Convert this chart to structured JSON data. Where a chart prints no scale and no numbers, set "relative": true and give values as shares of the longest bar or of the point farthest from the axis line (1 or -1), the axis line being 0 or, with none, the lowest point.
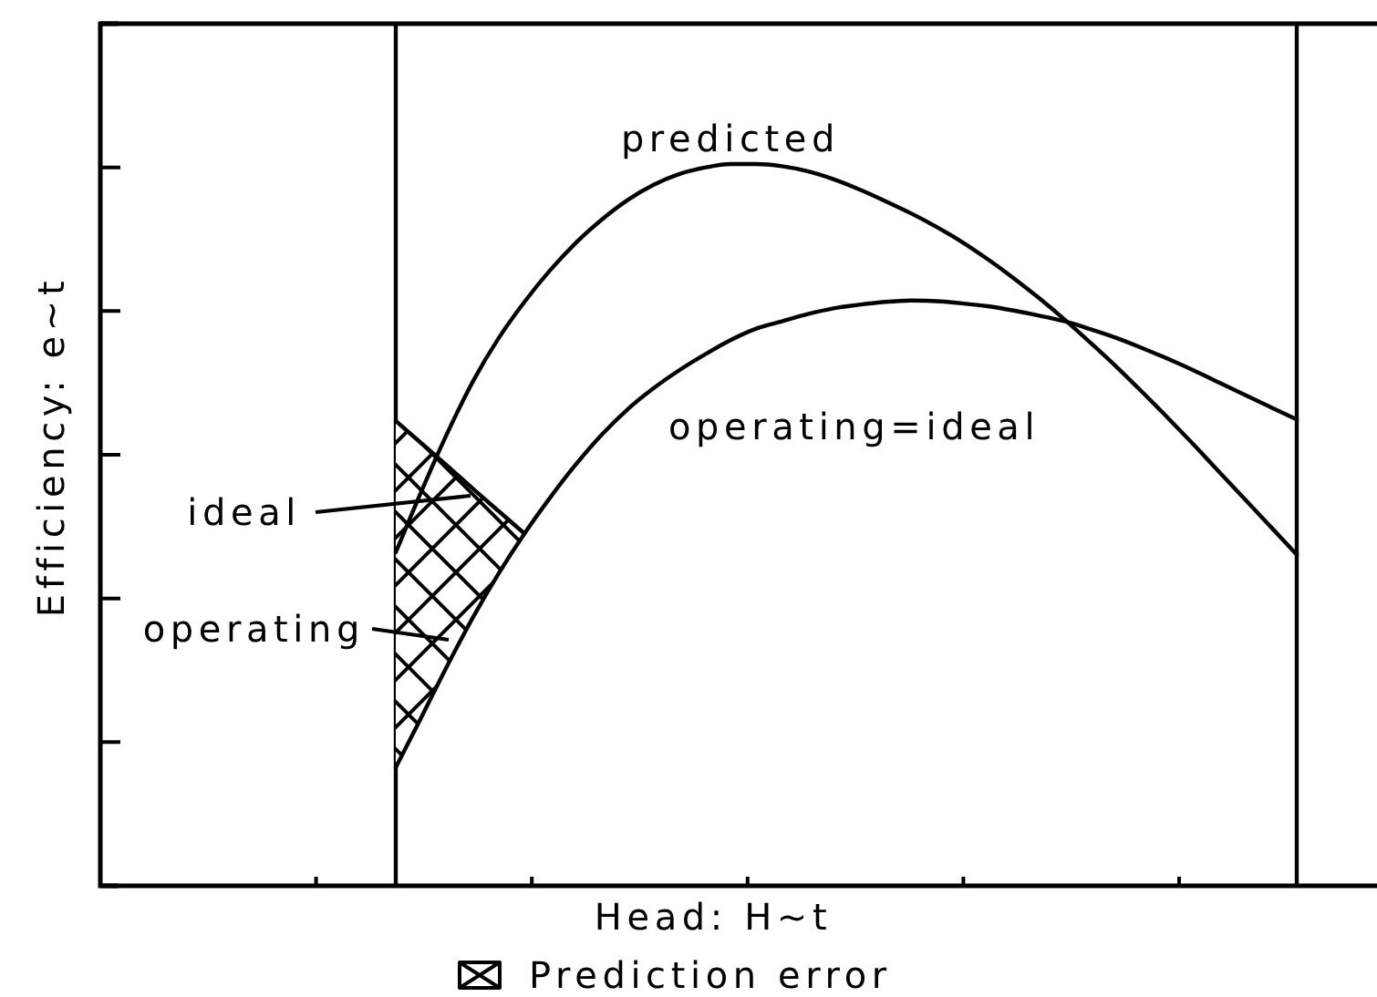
{
  "chart_data": {
    "type": "line",
    "xlabel": "Head: H~t",
    "ylabel": "Efficiency: e~t",
    "relative": true,
    "categories": [
      null,
      null,
      null,
      null,
      null,
      null,
      null,
      null,
      null,
      null,
      null,
      null,
      null,
      null,
      null,
      null,
      null,
      null,
      null,
      null,
      null,
      null,
      null,
      null,
      null,
      null,
      null,
      null,
      null,
      null,
      null,
      null,
      null,
      null,
      null,
      null,
      null,
      null,
      null,
      null,
      null,
      null,
      null,
      null,
      null,
      null,
      null,
      null,
      null,
      null
    ],
    "series": [
      {
        "name": "Prediction error",
        "color": "#000000",
        "values": [
          null,
          null,
          null,
          null,
          null,
          null,
          null,
          null,
          null,
          null,
          null,
          0.644,
          0.613,
          0.582,
          0.55,
          0.519,
          0.488,
          null,
          null,
          null,
          null,
          null,
          null,
          null,
          null,
          null,
          null,
          null,
          null,
          null,
          null,
          null,
          null,
          null,
          null,
          null,
          null,
          null,
          null,
          null,
          null,
          null,
          null,
          null,
          null,
          null,
          null,
          null,
          null,
          null
        ],
        "lower": [
          null,
          null,
          null,
          null,
          null,
          null,
          null,
          null,
          null,
          null,
          null,
          0.164,
          0.234,
          0.305,
          0.372,
          0.433,
          0.488,
          null,
          null,
          null,
          null,
          null,
          null,
          null,
          null,
          null,
          null,
          null,
          null,
          null,
          null,
          null,
          null,
          null,
          null,
          null,
          null,
          null,
          null,
          null,
          null,
          null,
          null,
          null,
          null,
          null,
          null,
          null,
          null,
          null
        ],
        "upper": [
          null,
          null,
          null,
          null,
          null,
          null,
          null,
          null,
          null,
          null,
          null,
          0.644,
          0.613,
          0.582,
          0.55,
          0.519,
          0.488,
          null,
          null,
          null,
          null,
          null,
          null,
          null,
          null,
          null,
          null,
          null,
          null,
          null,
          null,
          null,
          null,
          null,
          null,
          null,
          null,
          null,
          null,
          null,
          null,
          null,
          null,
          null,
          null,
          null,
          null,
          null,
          null,
          null
        ]
      },
      {
        "name": "predicted",
        "color": "#000000",
        "values": [
          null,
          null,
          null,
          null,
          null,
          null,
          null,
          null,
          null,
          null,
          null,
          0.462,
          0.547,
          0.627,
          0.699,
          0.759,
          0.809,
          0.853,
          0.891,
          0.923,
          0.95,
          0.971,
          0.986,
          0.995,
          1.0,
          1.0,
          0.997,
          0.99,
          0.979,
          0.965,
          0.949,
          0.932,
          0.913,
          0.892,
          0.868,
          0.842,
          0.814,
          0.784,
          0.752,
          0.719,
          0.684,
          0.648,
          0.611,
          0.573,
          0.535,
          0.497,
          0.459,
          null,
          null,
          null
        ]
      },
      {
        "name": "operating=ideal",
        "color": "#000000",
        "values": [
          null,
          null,
          null,
          null,
          null,
          null,
          null,
          null,
          null,
          null,
          null,
          0.164,
          0.234,
          0.305,
          0.372,
          0.433,
          0.488,
          0.538,
          0.584,
          0.625,
          0.66,
          0.689,
          0.714,
          0.736,
          0.756,
          0.772,
          0.782,
          0.792,
          0.8,
          0.805,
          0.809,
          0.811,
          0.81,
          0.807,
          0.803,
          0.797,
          0.79,
          0.782,
          0.771,
          0.759,
          0.745,
          0.73,
          0.714,
          0.697,
          0.68,
          0.663,
          0.646,
          null,
          null,
          null
        ]
      }
    ],
    "annotations": [
      "ideal",
      "operating"
    ],
    "legend": "bottom"
  }
}
